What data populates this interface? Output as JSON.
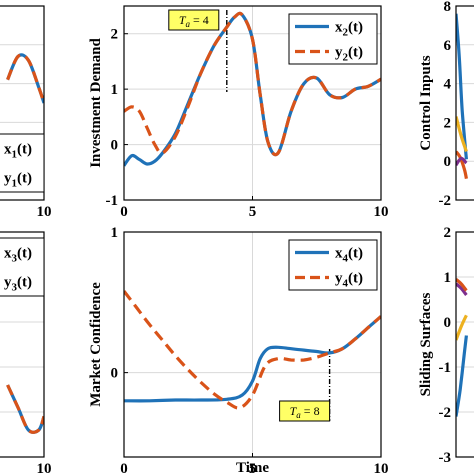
{
  "colors": {
    "x_series": "#1f72b8",
    "y_series": "#d95319",
    "grid": "#d9d9d9",
    "annotation_bg": "#ffff66",
    "purple": "#7e2f8e",
    "yellow": "#edb120"
  },
  "chart_data": [
    {
      "id": "left_top",
      "type": "line",
      "xlim": [
        null,
        10
      ],
      "ylim": [
        null,
        null
      ],
      "xticks": [
        10
      ],
      "yticks": [],
      "legend": [
        "x1(t)",
        "y1(t)"
      ],
      "legend_placement": "bottom-right",
      "series": [
        {
          "name": "x1(t)",
          "style": "solid",
          "x": [
            6.5,
            7.5,
            8.5,
            9.5,
            10
          ],
          "y": [
            0.62,
            0.74,
            0.72,
            0.58,
            0.5
          ]
        },
        {
          "name": "y1(t)",
          "style": "dashed",
          "x": [
            6.5,
            7.5,
            8.5,
            9.5,
            10
          ],
          "y": [
            0.62,
            0.74,
            0.72,
            0.58,
            0.5
          ]
        }
      ]
    },
    {
      "id": "investment",
      "type": "line",
      "xlabel": "",
      "ylabel": "Investment Demand",
      "xlim": [
        0,
        10
      ],
      "ylim": [
        -1,
        2.5
      ],
      "xticks": [
        0,
        5,
        10
      ],
      "yticks": [
        -1,
        0,
        1,
        2
      ],
      "legend": [
        "x2(t)",
        "y2(t)"
      ],
      "legend_placement": "top-right",
      "annotation": {
        "text": "Ta = 4",
        "x": 4
      },
      "series": [
        {
          "name": "x2(t)",
          "style": "solid",
          "x": [
            0,
            0.3,
            0.6,
            0.9,
            1.2,
            1.5,
            2,
            2.5,
            3,
            3.5,
            4,
            4.3,
            4.6,
            5,
            5.3,
            5.6,
            6,
            6.5,
            7,
            7.5,
            8,
            8.5,
            9,
            9.5,
            10
          ],
          "y": [
            -0.38,
            -0.2,
            -0.27,
            -0.35,
            -0.3,
            -0.15,
            0.2,
            0.75,
            1.3,
            1.78,
            2.12,
            2.3,
            2.34,
            1.9,
            0.9,
            0.05,
            -0.15,
            0.6,
            1.1,
            1.2,
            0.9,
            0.85,
            1.0,
            1.05,
            1.18
          ]
        },
        {
          "name": "y2(t)",
          "style": "dashed",
          "x": [
            0,
            0.3,
            0.6,
            0.9,
            1.2,
            1.5,
            2,
            2.5,
            3,
            3.5,
            4,
            4.3,
            4.6,
            5,
            5.3,
            5.6,
            6,
            6.5,
            7,
            7.5,
            8,
            8.5,
            9,
            9.5,
            10
          ],
          "y": [
            0.6,
            0.68,
            0.6,
            0.3,
            0.0,
            -0.15,
            0.15,
            0.7,
            1.3,
            1.78,
            2.12,
            2.3,
            2.34,
            1.9,
            0.9,
            0.05,
            -0.15,
            0.6,
            1.1,
            1.2,
            0.9,
            0.85,
            1.0,
            1.05,
            1.18
          ]
        }
      ]
    },
    {
      "id": "right_top",
      "type": "line",
      "ylabel": "Control Inputs",
      "ylim": [
        -2,
        8
      ],
      "yticks": [
        8,
        6,
        4,
        2,
        0,
        -2
      ],
      "series": [
        {
          "name": "",
          "color": "x_series",
          "x": [
            0,
            0.3,
            0.6,
            1
          ],
          "y": [
            7.6,
            5.5,
            2.6,
            0.1
          ]
        },
        {
          "name": "",
          "color": "y_series",
          "x": [
            0,
            0.4,
            0.8,
            1
          ],
          "y": [
            0.5,
            0.2,
            -0.4,
            -0.9
          ]
        },
        {
          "name": "",
          "color": "purple",
          "x": [
            0,
            0.5,
            1
          ],
          "y": [
            -0.2,
            0.15,
            -0.1
          ]
        },
        {
          "name": "",
          "color": "yellow",
          "x": [
            0,
            0.5,
            1
          ],
          "y": [
            2.3,
            1.3,
            0.5
          ]
        }
      ]
    },
    {
      "id": "left_bottom",
      "type": "line",
      "xlim": [
        null,
        10
      ],
      "xticks": [
        10
      ],
      "legend": [
        "x3(t)",
        "y3(t)"
      ],
      "legend_placement": "top-right",
      "series": [
        {
          "name": "x3(t)",
          "style": "solid",
          "x": [
            6.5,
            7.5,
            8.5,
            9.5,
            10
          ],
          "y": [
            0.32,
            0.22,
            0.12,
            0.12,
            0.18
          ]
        },
        {
          "name": "y3(t)",
          "style": "dashed",
          "x": [
            6.5,
            7.5,
            8.5,
            9.5,
            10
          ],
          "y": [
            0.32,
            0.22,
            0.12,
            0.12,
            0.18
          ]
        }
      ]
    },
    {
      "id": "market",
      "type": "line",
      "xlabel": "Time",
      "ylabel": "Market Confidence",
      "xlim": [
        0,
        10
      ],
      "ylim": [
        -0.6,
        1
      ],
      "xticks": [
        0,
        5,
        10
      ],
      "yticks": [
        0,
        1
      ],
      "legend": [
        "x4(t)",
        "y4(t)"
      ],
      "legend_placement": "top-right",
      "annotation": {
        "text": "Ta = 8",
        "x": 8
      },
      "series": [
        {
          "name": "x4(t)",
          "style": "solid",
          "x": [
            0,
            1,
            2,
            3,
            4,
            4.6,
            5,
            5.3,
            5.6,
            6,
            6.5,
            7,
            7.5,
            8,
            8.5,
            9,
            9.5,
            10
          ],
          "y": [
            -0.2,
            -0.2,
            -0.195,
            -0.195,
            -0.19,
            -0.16,
            -0.06,
            0.1,
            0.17,
            0.18,
            0.17,
            0.16,
            0.15,
            0.14,
            0.17,
            0.24,
            0.32,
            0.4
          ]
        },
        {
          "name": "y4(t)",
          "style": "dashed",
          "x": [
            0,
            0.5,
            1,
            1.5,
            2,
            2.5,
            3,
            3.5,
            4,
            4.5,
            5,
            5.5,
            6,
            6.5,
            7,
            7.5,
            8,
            8.5,
            9,
            9.5,
            10
          ],
          "y": [
            0.58,
            0.46,
            0.34,
            0.23,
            0.12,
            0.02,
            -0.07,
            -0.15,
            -0.21,
            -0.25,
            -0.16,
            0.05,
            0.1,
            0.09,
            0.09,
            0.11,
            0.14,
            0.17,
            0.24,
            0.32,
            0.4
          ]
        }
      ]
    },
    {
      "id": "right_bottom",
      "type": "line",
      "ylabel": "Sliding Surfaces",
      "ylim": [
        -3,
        2
      ],
      "yticks": [
        2,
        1,
        0,
        -1,
        -2,
        -3
      ],
      "series": [
        {
          "name": "",
          "color": "purple",
          "x": [
            0,
            0.5,
            1
          ],
          "y": [
            0.85,
            0.75,
            0.6
          ]
        },
        {
          "name": "",
          "color": "y_series",
          "x": [
            0,
            0.5,
            1
          ],
          "y": [
            0.95,
            0.85,
            0.7
          ]
        },
        {
          "name": "",
          "color": "yellow",
          "x": [
            0,
            0.5,
            1
          ],
          "y": [
            -0.4,
            -0.1,
            0.15
          ]
        },
        {
          "name": "",
          "color": "x_series",
          "x": [
            0,
            0.4,
            0.8,
            1
          ],
          "y": [
            -2.1,
            -1.5,
            -0.7,
            -0.3
          ]
        }
      ]
    }
  ]
}
